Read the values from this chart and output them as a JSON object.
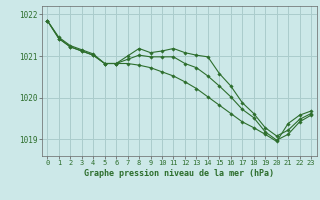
{
  "background_color": "#cce8e8",
  "grid_color": "#aacccc",
  "line_color": "#2d6e2d",
  "marker_color": "#2d6e2d",
  "title": "Graphe pression niveau de la mer (hPa)",
  "ylim": [
    1018.6,
    1022.2
  ],
  "xlim": [
    -0.5,
    23.5
  ],
  "xticks": [
    0,
    1,
    2,
    3,
    4,
    5,
    6,
    7,
    8,
    9,
    10,
    11,
    12,
    13,
    14,
    15,
    16,
    17,
    18,
    19,
    20,
    21,
    22,
    23
  ],
  "yticks": [
    1019,
    1020,
    1021,
    1022
  ],
  "series": [
    [
      1021.85,
      1021.45,
      1021.25,
      1021.15,
      1021.05,
      1020.82,
      1020.82,
      1020.82,
      1020.78,
      1020.72,
      1020.62,
      1020.52,
      1020.38,
      1020.22,
      1020.02,
      1019.82,
      1019.62,
      1019.42,
      1019.28,
      1019.12,
      1018.95,
      1019.38,
      1019.58,
      1019.68
    ],
    [
      1021.85,
      1021.42,
      1021.22,
      1021.12,
      1021.02,
      1020.82,
      1020.82,
      1021.0,
      1021.18,
      1021.08,
      1021.12,
      1021.18,
      1021.08,
      1021.02,
      1020.98,
      1020.58,
      1020.28,
      1019.88,
      1019.62,
      1019.28,
      1019.08,
      1019.22,
      1019.48,
      1019.62
    ],
    [
      1021.85,
      1021.42,
      1021.22,
      1021.12,
      1021.02,
      1020.82,
      1020.82,
      1020.92,
      1021.02,
      1020.98,
      1020.98,
      1020.98,
      1020.82,
      1020.72,
      1020.52,
      1020.28,
      1020.02,
      1019.72,
      1019.52,
      1019.18,
      1018.98,
      1019.12,
      1019.42,
      1019.58
    ]
  ]
}
